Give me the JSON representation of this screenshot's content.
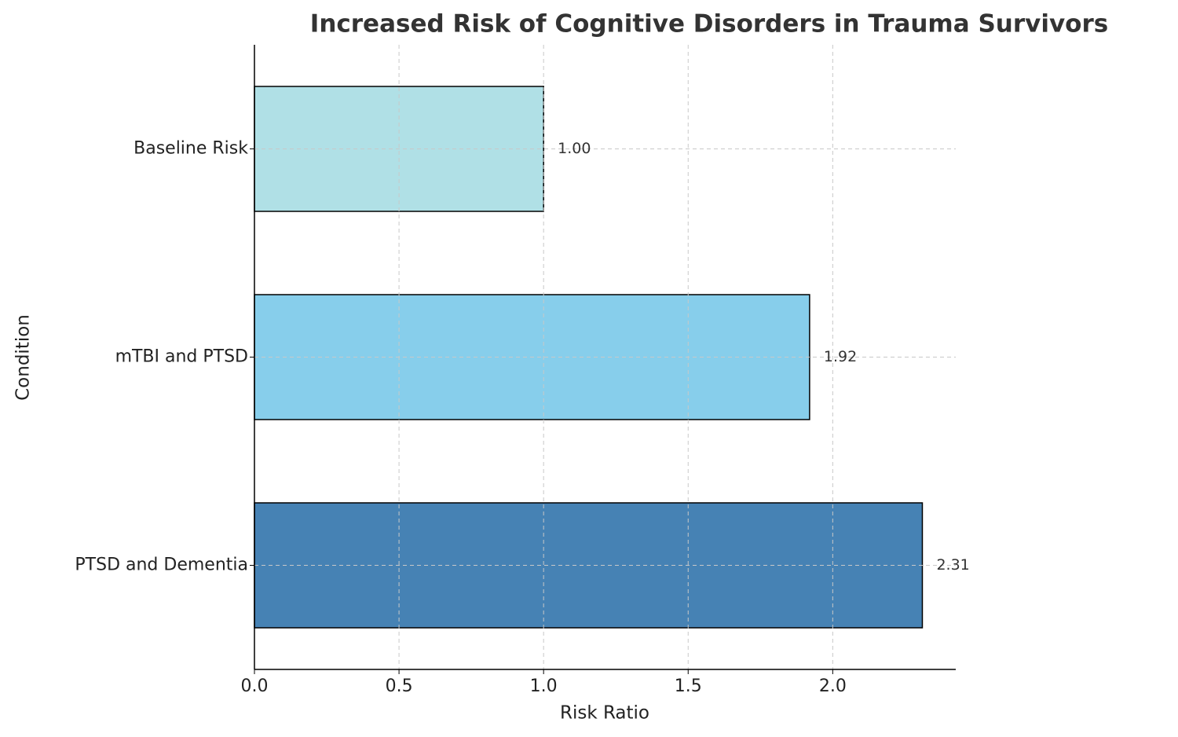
{
  "chart_data": {
    "type": "barh",
    "title": "Increased Risk of Cognitive Disorders in Trauma Survivors",
    "xlabel": "Risk Ratio",
    "ylabel": "Condition",
    "categories": [
      "Baseline Risk",
      "mTBI and PTSD",
      "PTSD and Dementia"
    ],
    "values": [
      1.0,
      1.92,
      2.31
    ],
    "value_labels": [
      "1.00",
      "1.92",
      "2.31"
    ],
    "colors": [
      "#b0e0e6",
      "#87ceeb",
      "#4682b4"
    ],
    "xlim": [
      0,
      2.4255
    ],
    "xticks": [
      {
        "value": 0,
        "label": "0.0"
      },
      0.5,
      {
        "value": 1,
        "label": "1.0"
      },
      1.5,
      {
        "value": 2,
        "label": "2.0"
      }
    ],
    "grid": true
  }
}
